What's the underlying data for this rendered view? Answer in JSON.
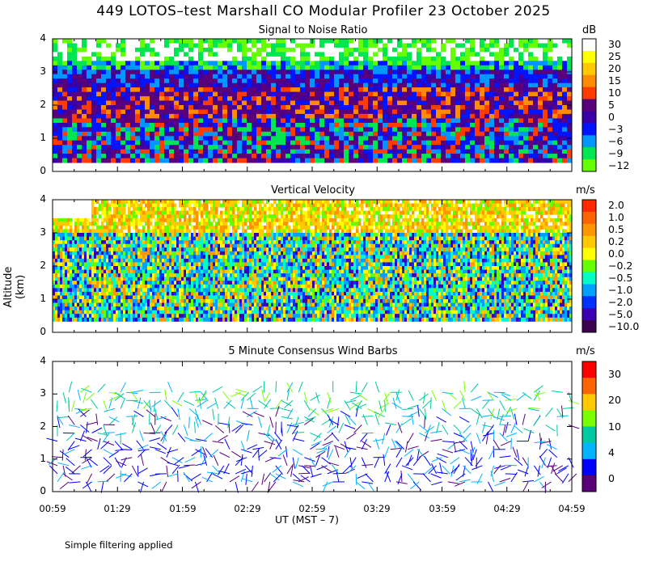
{
  "title": "449 LOTOS–test Marshall CO Modular Profiler 23 October 2025",
  "y_axis_title": "Altitude (km)",
  "x_axis_title": "UT  (MST – 7)",
  "footnote": "Simple filtering applied",
  "x_ticks": [
    "00:59",
    "01:29",
    "01:59",
    "02:29",
    "02:59",
    "03:29",
    "03:59",
    "04:29",
    "04:59"
  ],
  "y_ticks": [
    "0",
    "1",
    "2",
    "3",
    "4"
  ],
  "chart_data": [
    {
      "type": "heatmap",
      "title": "Signal to Noise Ratio",
      "unit": "dB",
      "ylim": [
        0,
        4
      ],
      "colorbar": {
        "labels": [
          "30",
          "25",
          "20",
          "15",
          "10",
          "5",
          "0",
          "−3",
          "−6",
          "−9",
          "−12"
        ],
        "colors": [
          "#ffffff",
          "#ffff00",
          "#ffc800",
          "#ff8c00",
          "#ff3c00",
          "#5a007a",
          "#3a00a8",
          "#0014ff",
          "#0096ff",
          "#00e650",
          "#64ff00"
        ]
      }
    },
    {
      "type": "heatmap",
      "title": "Vertical Velocity",
      "unit": "m/s",
      "ylim": [
        0,
        4
      ],
      "colorbar": {
        "labels": [
          "2.0",
          "1.0",
          "0.5",
          "0.2",
          "0.0",
          "−0.2",
          "−0.5",
          "−1.0",
          "−2.0",
          "−5.0",
          "−10.0"
        ],
        "colors": [
          "#ff2800",
          "#ff6400",
          "#ff9600",
          "#ffc800",
          "#ffff00",
          "#64ff00",
          "#00ffc8",
          "#00a0ff",
          "#0032ff",
          "#3c00b4",
          "#3c0050"
        ]
      }
    },
    {
      "type": "scatter",
      "title": "5 Minute Consensus Wind Barbs",
      "unit": "m/s",
      "ylim": [
        0,
        4
      ],
      "colorbar": {
        "labels": [
          "30",
          "20",
          "10",
          "4",
          "0"
        ],
        "colors": [
          "#ff0000",
          "#ff6400",
          "#ffc800",
          "#78ff00",
          "#00c8a0",
          "#00b4ff",
          "#0000ff",
          "#5a0078"
        ]
      }
    }
  ]
}
